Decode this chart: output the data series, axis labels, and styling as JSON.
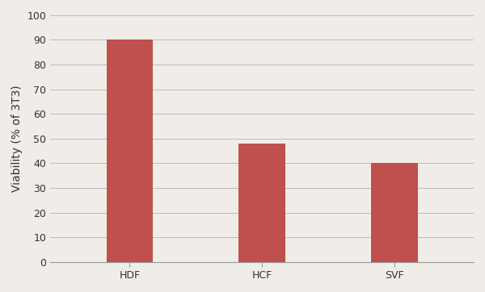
{
  "categories": [
    "HDF",
    "HCF",
    "SVF"
  ],
  "values": [
    90,
    48,
    40
  ],
  "bar_color": "#c0504d",
  "ylabel": "Viability (% of 3T3)",
  "ylim": [
    0,
    100
  ],
  "yticks": [
    0,
    10,
    20,
    30,
    40,
    50,
    60,
    70,
    80,
    90,
    100
  ],
  "bar_width": 0.35,
  "background_color": "#f0ede8",
  "plot_bg_color": "#f0ede8",
  "grid_color": "#bbbbbb",
  "ylabel_fontsize": 10,
  "tick_fontsize": 9,
  "tick_label_color": "#333333"
}
